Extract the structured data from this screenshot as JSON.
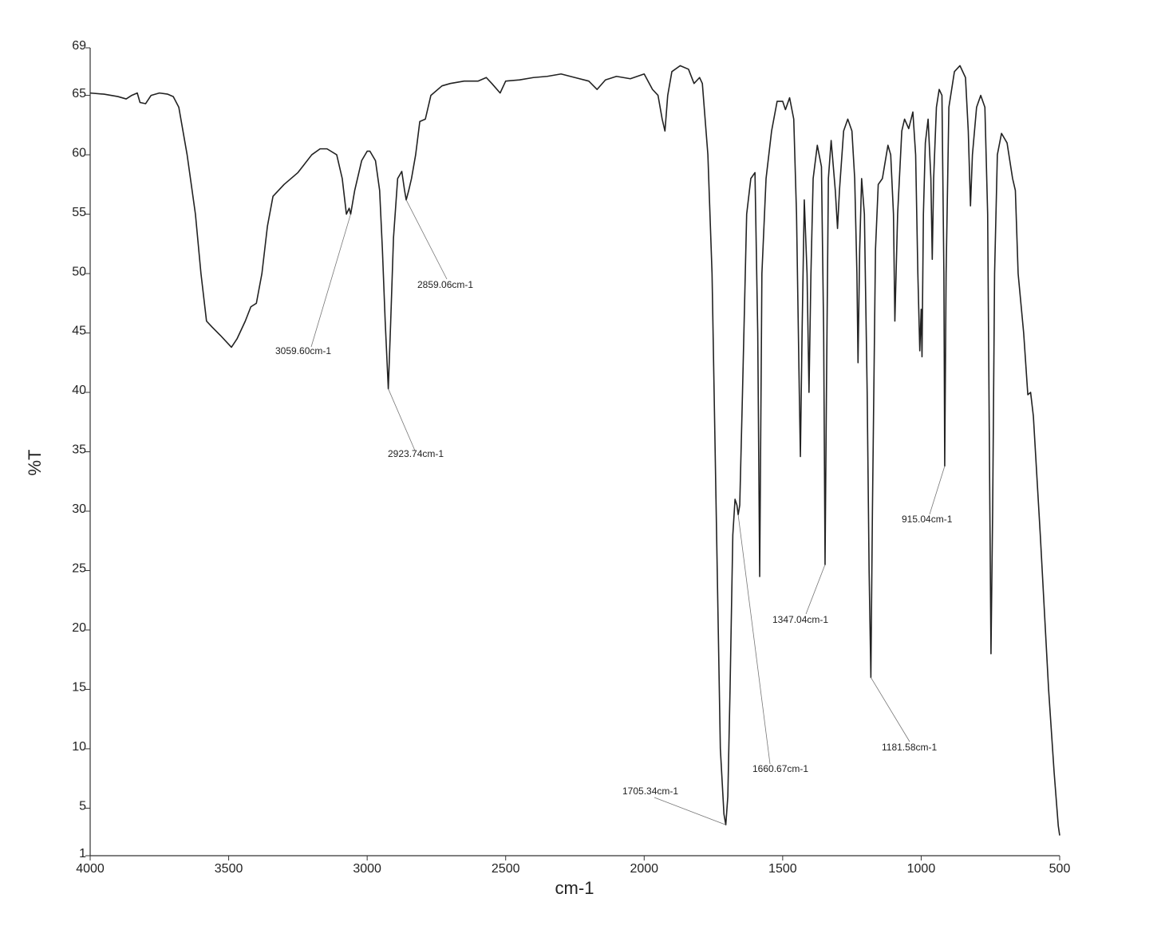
{
  "chart_data": {
    "type": "line",
    "xlabel": "cm-1",
    "ylabel": "%T",
    "color": "#222222",
    "xlim": [
      4000,
      500
    ],
    "ylim": [
      1,
      69
    ],
    "xticks": [
      4000,
      3500,
      3000,
      2500,
      2000,
      1500,
      1000,
      500
    ],
    "yticks": [
      1,
      5,
      10,
      15,
      20,
      25,
      30,
      35,
      40,
      45,
      50,
      55,
      60,
      65,
      69
    ],
    "x": [
      4000,
      3950,
      3900,
      3870,
      3850,
      3830,
      3820,
      3800,
      3780,
      3750,
      3720,
      3700,
      3680,
      3650,
      3620,
      3600,
      3580,
      3560,
      3530,
      3490,
      3470,
      3440,
      3420,
      3400,
      3380,
      3360,
      3340,
      3300,
      3250,
      3200,
      3170,
      3145,
      3110,
      3090,
      3075,
      3065,
      3059.6,
      3045,
      3020,
      3000,
      2990,
      2970,
      2955,
      2945,
      2935,
      2923.74,
      2915,
      2905,
      2890,
      2875,
      2865,
      2859.06,
      2850,
      2840,
      2825,
      2810,
      2790,
      2770,
      2730,
      2700,
      2650,
      2600,
      2570,
      2550,
      2520,
      2500,
      2450,
      2400,
      2350,
      2300,
      2250,
      2200,
      2170,
      2140,
      2100,
      2050,
      2000,
      1970,
      1950,
      1935,
      1925,
      1915,
      1900,
      1870,
      1840,
      1820,
      1800,
      1790,
      1770,
      1755,
      1740,
      1725,
      1712,
      1705.34,
      1698,
      1690,
      1680,
      1672,
      1665,
      1660.67,
      1655,
      1645,
      1630,
      1615,
      1600,
      1590,
      1583,
      1575,
      1560,
      1540,
      1520,
      1500,
      1490,
      1475,
      1460,
      1450,
      1440,
      1436,
      1430,
      1422,
      1412,
      1405,
      1398,
      1390,
      1375,
      1360,
      1352,
      1347.04,
      1342,
      1335,
      1325,
      1310,
      1302,
      1295,
      1280,
      1265,
      1250,
      1240,
      1232,
      1228,
      1222,
      1215,
      1205,
      1195,
      1188,
      1181.58,
      1176,
      1165,
      1155,
      1140,
      1120,
      1110,
      1100,
      1095,
      1085,
      1070,
      1060,
      1045,
      1030,
      1020,
      1012,
      1005,
      1000,
      997,
      992,
      985,
      975,
      965,
      960,
      955,
      945,
      935,
      925,
      918,
      915.04,
      910,
      900,
      880,
      860,
      840,
      830,
      822,
      815,
      800,
      785,
      770,
      760,
      752,
      748,
      742,
      735,
      725,
      710,
      690,
      670,
      660,
      650,
      630,
      615,
      605,
      595,
      570,
      540,
      520,
      505,
      500
    ],
    "values": [
      65.2,
      65.1,
      64.9,
      64.7,
      65.0,
      65.2,
      64.4,
      64.3,
      65.0,
      65.2,
      65.1,
      64.9,
      64.0,
      60.0,
      55.0,
      50.0,
      46.0,
      45.5,
      44.8,
      43.8,
      44.5,
      46.0,
      47.2,
      47.5,
      50.0,
      54.0,
      56.5,
      57.5,
      58.5,
      60.0,
      60.5,
      60.5,
      60.0,
      58.0,
      55.0,
      55.5,
      55.0,
      57.0,
      59.5,
      60.3,
      60.3,
      59.5,
      57.0,
      52.0,
      46.0,
      40.3,
      46.0,
      53.0,
      58.0,
      58.6,
      57.0,
      56.2,
      57.0,
      58.0,
      60.0,
      62.8,
      63.0,
      65.0,
      65.8,
      66.0,
      66.2,
      66.2,
      66.5,
      66.0,
      65.2,
      66.2,
      66.3,
      66.5,
      66.6,
      66.8,
      66.5,
      66.2,
      65.5,
      66.3,
      66.6,
      66.4,
      66.8,
      65.5,
      65.0,
      63.0,
      62.0,
      65.0,
      67.0,
      67.5,
      67.2,
      66.0,
      66.5,
      66.0,
      60.0,
      50.0,
      30.0,
      10.0,
      4.5,
      3.6,
      6.0,
      15.0,
      28.0,
      31.0,
      30.5,
      29.7,
      30.5,
      40.0,
      55.0,
      58.0,
      58.5,
      45.0,
      24.5,
      50.0,
      58.0,
      62.0,
      64.5,
      64.5,
      63.8,
      64.8,
      63.0,
      55.0,
      40.0,
      34.6,
      45.0,
      56.2,
      50.0,
      40.0,
      50.0,
      58.0,
      60.8,
      59.0,
      45.0,
      25.5,
      40.0,
      58.0,
      61.2,
      57.0,
      53.8,
      57.0,
      62.0,
      63.0,
      62.0,
      58.0,
      50.0,
      42.5,
      52.0,
      58.0,
      55.0,
      40.0,
      25.0,
      16.0,
      30.0,
      52.0,
      57.5,
      58.0,
      60.8,
      60.0,
      55.0,
      46.0,
      55.0,
      62.0,
      63.0,
      62.2,
      63.6,
      60.0,
      50.0,
      43.5,
      47.0,
      43.0,
      55.0,
      61.0,
      63.0,
      58.0,
      51.2,
      58.0,
      64.0,
      65.5,
      65.0,
      50.0,
      33.8,
      50.0,
      64.0,
      67.0,
      67.5,
      66.5,
      62.0,
      55.7,
      60.0,
      64.0,
      65.0,
      64.0,
      55.0,
      30.0,
      18.0,
      30.0,
      50.0,
      60.0,
      61.8,
      61.0,
      58.0,
      57.0,
      50.0,
      45.0,
      39.8,
      40.0,
      38.0,
      28.0,
      15.0,
      8.0,
      3.5,
      2.7
    ],
    "annotations": [
      {
        "text": "3059.60cm-1",
        "x": 3059.6,
        "y": 55.0
      },
      {
        "text": "2859.06cm-1",
        "x": 2859.06,
        "y": 56.2
      },
      {
        "text": "2923.74cm-1",
        "x": 2923.74,
        "y": 40.3
      },
      {
        "text": "1705.34cm-1",
        "x": 1705.34,
        "y": 3.6
      },
      {
        "text": "1660.67cm-1",
        "x": 1660.67,
        "y": 29.7
      },
      {
        "text": "1347.04cm-1",
        "x": 1347.04,
        "y": 25.5
      },
      {
        "text": "1181.58cm-1",
        "x": 1181.58,
        "y": 16.0
      },
      {
        "text": "915.04cm-1",
        "x": 915.04,
        "y": 33.8
      }
    ]
  }
}
